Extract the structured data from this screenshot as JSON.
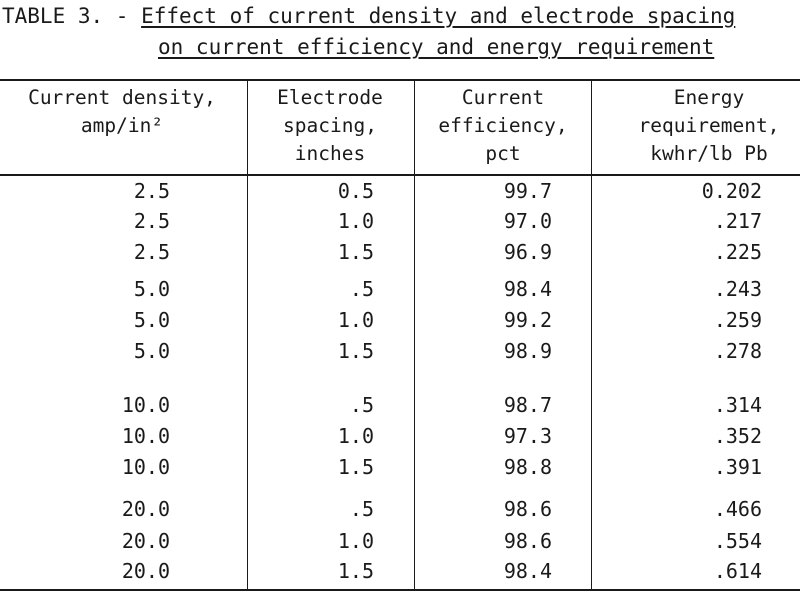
{
  "table": {
    "title_line1_prefix": "TABLE 3. - ",
    "title_line1_text": "Effect of current density and electrode spacing",
    "title_line2_text": "on current efficiency and energy requirement",
    "headers": [
      {
        "line1": "Current density,",
        "line2": "amp/in²",
        "line3": ""
      },
      {
        "line1": "Electrode",
        "line2": "spacing,",
        "line3": "inches"
      },
      {
        "line1": "Current",
        "line2": "efficiency,",
        "line3": "pct"
      },
      {
        "line1": "Energy",
        "line2": "requirement,",
        "line3": "kwhr/lb Pb"
      }
    ],
    "rows": [
      [
        "2.5",
        "0.5",
        "99.7",
        "0.202"
      ],
      [
        "2.5",
        "1.0",
        "97.0",
        ".217"
      ],
      [
        "2.5",
        "1.5",
        "96.9",
        ".225"
      ],
      [
        "5.0",
        ".5",
        "98.4",
        ".243"
      ],
      [
        "5.0",
        "1.0",
        "99.2",
        ".259"
      ],
      [
        "5.0",
        "1.5",
        "98.9",
        ".278"
      ],
      [
        "10.0",
        ".5",
        "98.7",
        ".314"
      ],
      [
        "10.0",
        "1.0",
        "97.3",
        ".352"
      ],
      [
        "10.0",
        "1.5",
        "98.8",
        ".391"
      ],
      [
        "20.0",
        ".5",
        "98.6",
        ".466"
      ],
      [
        "20.0",
        "1.0",
        "98.6",
        ".554"
      ],
      [
        "20.0",
        "1.5",
        "98.4",
        ".614"
      ]
    ]
  }
}
